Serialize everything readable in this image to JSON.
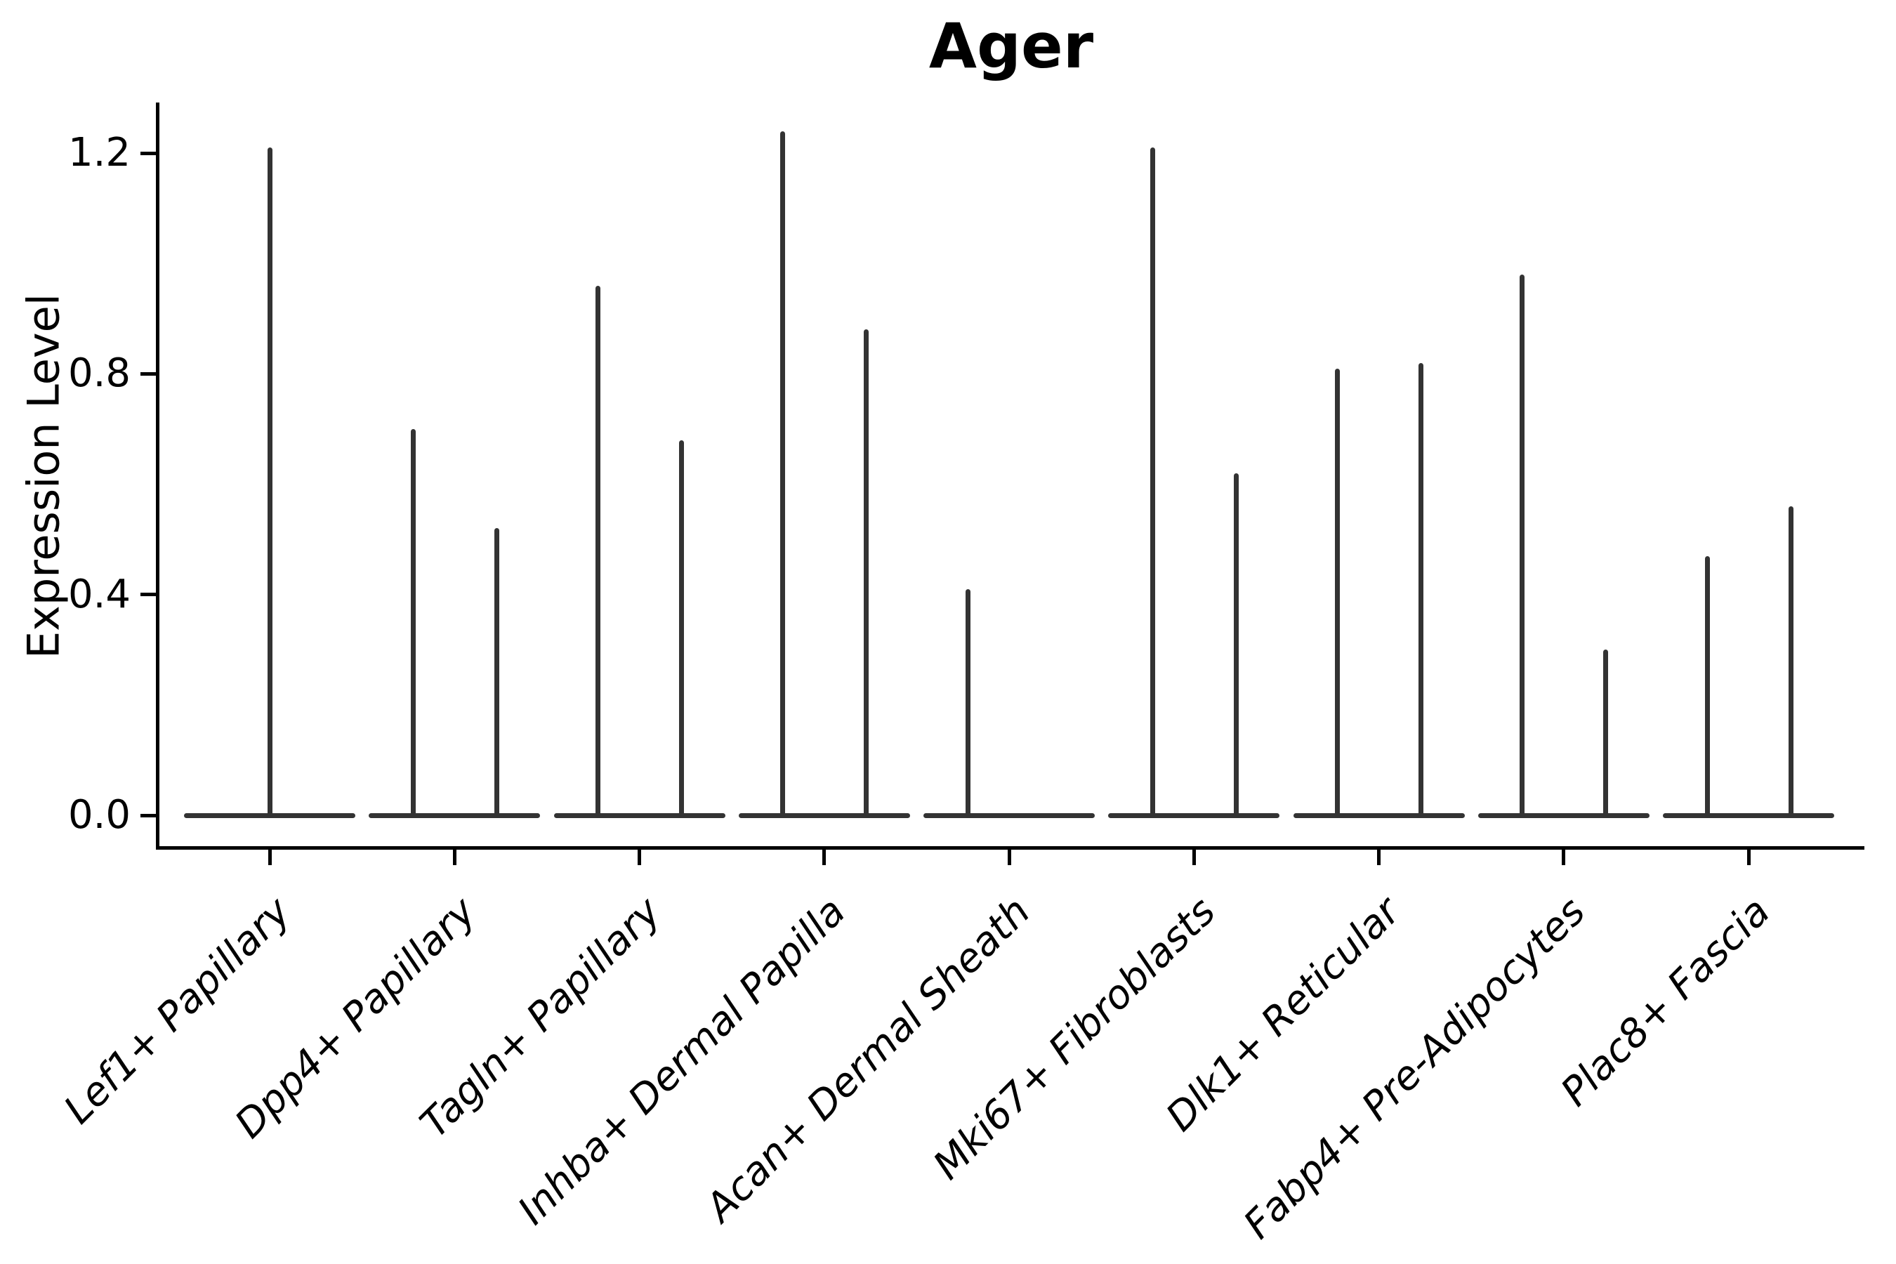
{
  "figure": {
    "background": "#ffffff"
  },
  "chart_data": {
    "type": "violin",
    "title": "Ager",
    "xlabel": "",
    "ylabel": "Expression Level",
    "ylim": [
      -0.06,
      1.29
    ],
    "grid": false,
    "legend": null,
    "yticks": [
      {
        "value": 0.0,
        "label": "0.0"
      },
      {
        "value": 0.4,
        "label": "0.4"
      },
      {
        "value": 0.8,
        "label": "0.8"
      },
      {
        "value": 1.2,
        "label": "1.2"
      }
    ],
    "categories": [
      "Lef1+ Papillary",
      "Dpp4+ Papillary",
      "Tagln+ Papillary",
      "Inhba+ Dermal Papilla",
      "Acan+ Dermal Sheath",
      "Mki67+ Fibroblasts",
      "Dlk1+ Reticular",
      "Fabp4+ Pre-Adipocytes",
      "Plac8+ Fascia"
    ],
    "description": "Violin plot of Ager expression; each category has a flat violin base at 0 with thin vertical density spikes (two dodged sub-violins where present).",
    "violins": [
      {
        "category": "Lef1+ Papillary",
        "spikes": [
          {
            "position": "center",
            "max": 1.21
          }
        ]
      },
      {
        "category": "Dpp4+ Papillary",
        "spikes": [
          {
            "position": "left",
            "max": 0.7
          },
          {
            "position": "right",
            "max": 0.52
          }
        ]
      },
      {
        "category": "Tagln+ Papillary",
        "spikes": [
          {
            "position": "left",
            "max": 0.96
          },
          {
            "position": "right",
            "max": 0.68
          }
        ]
      },
      {
        "category": "Inhba+ Dermal Papilla",
        "spikes": [
          {
            "position": "left",
            "max": 1.24
          },
          {
            "position": "right",
            "max": 0.88
          }
        ]
      },
      {
        "category": "Acan+ Dermal Sheath",
        "spikes": [
          {
            "position": "left",
            "max": 0.41
          }
        ]
      },
      {
        "category": "Mki67+ Fibroblasts",
        "spikes": [
          {
            "position": "left",
            "max": 1.21
          },
          {
            "position": "right",
            "max": 0.62
          }
        ]
      },
      {
        "category": "Dlk1+ Reticular",
        "spikes": [
          {
            "position": "left",
            "max": 0.81
          },
          {
            "position": "right",
            "max": 0.82
          }
        ]
      },
      {
        "category": "Fabp4+ Pre-Adipocytes",
        "spikes": [
          {
            "position": "left",
            "max": 0.98
          },
          {
            "position": "right",
            "max": 0.3
          }
        ]
      },
      {
        "category": "Plac8+ Fascia",
        "spikes": [
          {
            "position": "left",
            "max": 0.47
          },
          {
            "position": "right",
            "max": 0.56
          }
        ]
      }
    ],
    "colors": {
      "violin_line": "#333333",
      "axis": "#000000",
      "text": "#000000"
    }
  }
}
